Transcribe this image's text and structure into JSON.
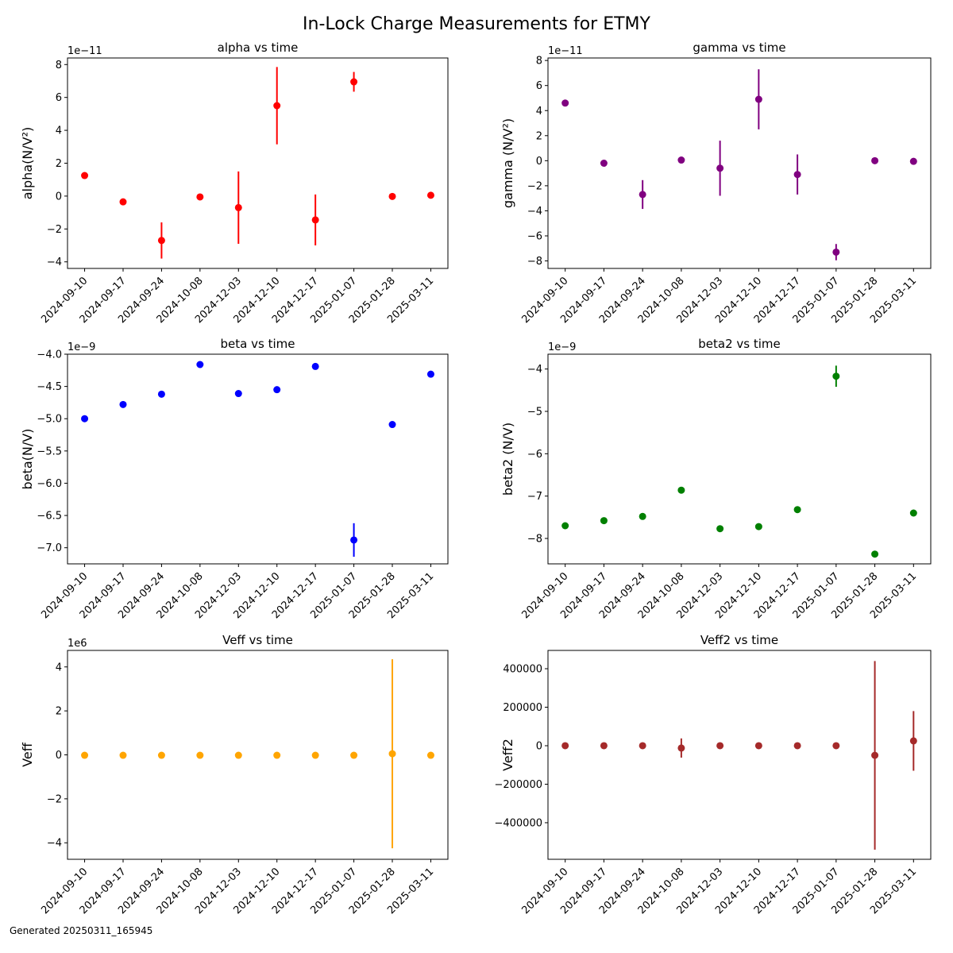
{
  "title": "In-Lock Charge Measurements for ETMY",
  "footer": "Generated 20250311_165945",
  "chart_data": [
    {
      "type": "scatter",
      "title": "alpha vs time",
      "ylabel": "alpha(N/V²)",
      "offset_label": "1e−11",
      "color": "#ff0000",
      "x": [
        "2024-09-10",
        "2024-09-17",
        "2024-09-24",
        "2024-10-08",
        "2024-12-03",
        "2024-12-10",
        "2024-12-17",
        "2025-01-07",
        "2025-01-28",
        "2025-03-11"
      ],
      "y": [
        1.25,
        -0.35,
        -2.7,
        -0.05,
        -0.7,
        5.5,
        -1.45,
        6.95,
        -0.02,
        0.05
      ],
      "yerr": [
        0.05,
        0.15,
        1.1,
        0.1,
        2.2,
        2.35,
        1.55,
        0.6,
        0.05,
        0.05
      ],
      "ylim": [
        -4.4,
        8.4
      ],
      "yticks": [
        -4,
        -2,
        0,
        2,
        4,
        6,
        8
      ],
      "ytick_labels": [
        "−4",
        "−2",
        "0",
        "2",
        "4",
        "6",
        "8"
      ]
    },
    {
      "type": "scatter",
      "title": "gamma vs time",
      "ylabel": "gamma (N/V²)",
      "offset_label": "1e−11",
      "color": "#800080",
      "x": [
        "2024-09-10",
        "2024-09-17",
        "2024-09-24",
        "2024-10-08",
        "2024-12-03",
        "2024-12-10",
        "2024-12-17",
        "2025-01-07",
        "2025-01-28",
        "2025-03-11"
      ],
      "y": [
        4.6,
        -0.2,
        -2.7,
        0.05,
        -0.6,
        4.9,
        -1.1,
        -7.3,
        0.0,
        -0.05
      ],
      "yerr": [
        0.05,
        0.1,
        1.15,
        0.1,
        2.2,
        2.4,
        1.6,
        0.65,
        0.05,
        0.05
      ],
      "ylim": [
        -8.6,
        8.2
      ],
      "yticks": [
        -8,
        -6,
        -4,
        -2,
        0,
        2,
        4,
        6,
        8
      ],
      "ytick_labels": [
        "−8",
        "−6",
        "−4",
        "−2",
        "0",
        "2",
        "4",
        "6",
        "8"
      ]
    },
    {
      "type": "scatter",
      "title": "beta vs time",
      "ylabel": "beta(N/V)",
      "offset_label": "1e−9",
      "color": "#0000ff",
      "x": [
        "2024-09-10",
        "2024-09-17",
        "2024-09-24",
        "2024-10-08",
        "2024-12-03",
        "2024-12-10",
        "2024-12-17",
        "2025-01-07",
        "2025-01-28",
        "2025-03-11"
      ],
      "y": [
        -5.0,
        -4.78,
        -4.62,
        -4.16,
        -4.61,
        -4.55,
        -4.19,
        -6.88,
        -5.09,
        -4.31
      ],
      "yerr": [
        0.01,
        0.01,
        0.01,
        0.01,
        0.01,
        0.01,
        0.01,
        0.26,
        0.01,
        0.01
      ],
      "ylim": [
        -7.25,
        -4.0
      ],
      "yticks": [
        -7.0,
        -6.5,
        -6.0,
        -5.5,
        -5.0,
        -4.5,
        -4.0
      ],
      "ytick_labels": [
        "−7.0",
        "−6.5",
        "−6.0",
        "−5.5",
        "−5.0",
        "−4.5",
        "−4.0"
      ]
    },
    {
      "type": "scatter",
      "title": "beta2 vs time",
      "ylabel": "beta2 (N/V)",
      "offset_label": "1e−9",
      "color": "#008000",
      "x": [
        "2024-09-10",
        "2024-09-17",
        "2024-09-24",
        "2024-10-08",
        "2024-12-03",
        "2024-12-10",
        "2024-12-17",
        "2025-01-07",
        "2025-01-28",
        "2025-03-11"
      ],
      "y": [
        -7.7,
        -7.58,
        -7.48,
        -6.86,
        -7.77,
        -7.72,
        -7.32,
        -4.17,
        -8.37,
        -7.4
      ],
      "yerr": [
        0.01,
        0.01,
        0.01,
        0.01,
        0.01,
        0.01,
        0.01,
        0.25,
        0.01,
        0.01
      ],
      "ylim": [
        -8.6,
        -3.65
      ],
      "yticks": [
        -8,
        -7,
        -6,
        -5,
        -4
      ],
      "ytick_labels": [
        "−8",
        "−7",
        "−6",
        "−5",
        "−4"
      ]
    },
    {
      "type": "scatter",
      "title": "Veff vs time",
      "ylabel": "Veff",
      "offset_label": "1e6",
      "color": "#ffa500",
      "x": [
        "2024-09-10",
        "2024-09-17",
        "2024-09-24",
        "2024-10-08",
        "2024-12-03",
        "2024-12-10",
        "2024-12-17",
        "2025-01-07",
        "2025-01-28",
        "2025-03-11"
      ],
      "y": [
        -0.02,
        -0.02,
        -0.02,
        -0.02,
        -0.02,
        -0.02,
        -0.02,
        -0.02,
        0.05,
        -0.02
      ],
      "yerr": [
        0.0,
        0.0,
        0.0,
        0.0,
        0.0,
        0.0,
        0.0,
        0.0,
        4.3,
        0.0
      ],
      "ylim": [
        -4.75,
        4.75
      ],
      "yticks": [
        -4,
        -2,
        0,
        2,
        4
      ],
      "ytick_labels": [
        "−4",
        "−2",
        "0",
        "2",
        "4"
      ]
    },
    {
      "type": "scatter",
      "title": "Veff2 vs time",
      "ylabel": "Veff2",
      "offset_label": "",
      "color": "#a52a2a",
      "x": [
        "2024-09-10",
        "2024-09-17",
        "2024-09-24",
        "2024-10-08",
        "2024-12-03",
        "2024-12-10",
        "2024-12-17",
        "2025-01-07",
        "2025-01-28",
        "2025-03-11"
      ],
      "y": [
        0,
        0,
        0,
        -12000,
        0,
        0,
        0,
        0,
        -50000,
        25000
      ],
      "yerr": [
        0,
        0,
        0,
        50000,
        0,
        0,
        0,
        0,
        490000,
        155000
      ],
      "ylim": [
        -590000,
        495000
      ],
      "yticks": [
        -400000,
        -200000,
        0,
        200000,
        400000
      ],
      "ytick_labels": [
        "−400000",
        "−200000",
        "0",
        "200000",
        "400000"
      ]
    }
  ]
}
